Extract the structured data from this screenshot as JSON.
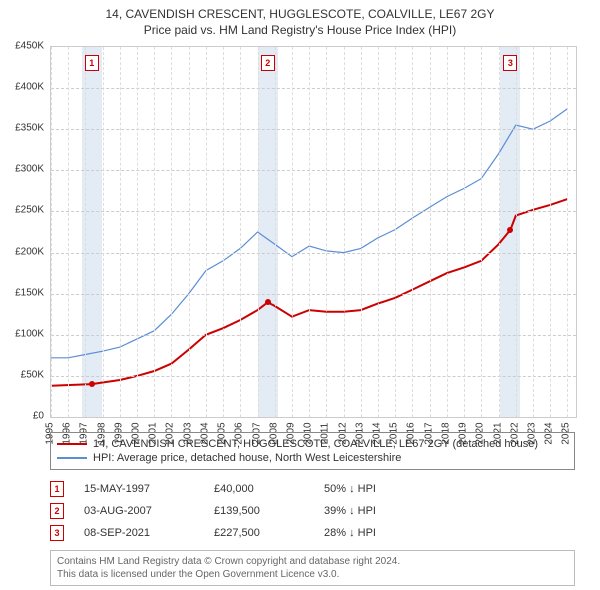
{
  "title_line1": "14, CAVENDISH CRESCENT, HUGGLESCOTE, COALVILLE, LE67 2GY",
  "title_line2": "Price paid vs. HM Land Registry's House Price Index (HPI)",
  "chart": {
    "type": "line",
    "x_years": [
      1995,
      1996,
      1997,
      1998,
      1999,
      2000,
      2001,
      2002,
      2003,
      2004,
      2005,
      2006,
      2007,
      2008,
      2009,
      2010,
      2011,
      2012,
      2013,
      2014,
      2015,
      2016,
      2017,
      2018,
      2019,
      2020,
      2021,
      2022,
      2023,
      2024,
      2025
    ],
    "xlim": [
      1995,
      2025.5
    ],
    "ylim": [
      0,
      450000
    ],
    "ytick_step": 50000,
    "y_tick_labels": [
      "£0",
      "£50K",
      "£100K",
      "£150K",
      "£200K",
      "£250K",
      "£300K",
      "£350K",
      "£400K",
      "£450K"
    ],
    "grid_color": "#ccc",
    "background_color": "#ffffff",
    "band_color": "rgba(200,215,235,0.5)",
    "series": [
      {
        "name": "property",
        "color": "#cc0000",
        "width": 2,
        "points": [
          [
            1995,
            38000
          ],
          [
            1997.37,
            40000
          ],
          [
            1998,
            42000
          ],
          [
            1999,
            45000
          ],
          [
            2000,
            50000
          ],
          [
            2001,
            56000
          ],
          [
            2002,
            65000
          ],
          [
            2003,
            82000
          ],
          [
            2004,
            100000
          ],
          [
            2005,
            108000
          ],
          [
            2006,
            118000
          ],
          [
            2007,
            130000
          ],
          [
            2007.59,
            139500
          ],
          [
            2008,
            135000
          ],
          [
            2009,
            122000
          ],
          [
            2010,
            130000
          ],
          [
            2011,
            128000
          ],
          [
            2012,
            128000
          ],
          [
            2013,
            130000
          ],
          [
            2014,
            138000
          ],
          [
            2015,
            145000
          ],
          [
            2016,
            155000
          ],
          [
            2017,
            165000
          ],
          [
            2018,
            175000
          ],
          [
            2019,
            182000
          ],
          [
            2020,
            190000
          ],
          [
            2021,
            210000
          ],
          [
            2021.69,
            227500
          ],
          [
            2022,
            245000
          ],
          [
            2023,
            252000
          ],
          [
            2024,
            258000
          ],
          [
            2025,
            265000
          ]
        ]
      },
      {
        "name": "hpi",
        "color": "#5b8dd6",
        "width": 1.2,
        "points": [
          [
            1995,
            72000
          ],
          [
            1996,
            72000
          ],
          [
            1997,
            76000
          ],
          [
            1998,
            80000
          ],
          [
            1999,
            85000
          ],
          [
            2000,
            95000
          ],
          [
            2001,
            105000
          ],
          [
            2002,
            125000
          ],
          [
            2003,
            150000
          ],
          [
            2004,
            178000
          ],
          [
            2005,
            190000
          ],
          [
            2006,
            205000
          ],
          [
            2007,
            225000
          ],
          [
            2008,
            210000
          ],
          [
            2009,
            195000
          ],
          [
            2010,
            208000
          ],
          [
            2011,
            202000
          ],
          [
            2012,
            200000
          ],
          [
            2013,
            205000
          ],
          [
            2014,
            218000
          ],
          [
            2015,
            228000
          ],
          [
            2016,
            242000
          ],
          [
            2017,
            255000
          ],
          [
            2018,
            268000
          ],
          [
            2019,
            278000
          ],
          [
            2020,
            290000
          ],
          [
            2021,
            320000
          ],
          [
            2022,
            355000
          ],
          [
            2023,
            350000
          ],
          [
            2024,
            360000
          ],
          [
            2025,
            375000
          ]
        ]
      }
    ],
    "transaction_markers": [
      {
        "n": "1",
        "year": 1997.37,
        "price": 40000
      },
      {
        "n": "2",
        "year": 2007.59,
        "price": 139500
      },
      {
        "n": "3",
        "year": 2021.69,
        "price": 227500
      }
    ]
  },
  "legend": {
    "items": [
      {
        "color": "#cc0000",
        "label": "14, CAVENDISH CRESCENT, HUGGLESCOTE, COALVILLE, LE67 2GY (detached house)"
      },
      {
        "color": "#5b8dd6",
        "label": "HPI: Average price, detached house, North West Leicestershire"
      }
    ]
  },
  "transactions": [
    {
      "n": "1",
      "date": "15-MAY-1997",
      "price": "£40,000",
      "delta": "50% ↓ HPI"
    },
    {
      "n": "2",
      "date": "03-AUG-2007",
      "price": "£139,500",
      "delta": "39% ↓ HPI"
    },
    {
      "n": "3",
      "date": "08-SEP-2021",
      "price": "£227,500",
      "delta": "28% ↓ HPI"
    }
  ],
  "footer_line1": "Contains HM Land Registry data © Crown copyright and database right 2024.",
  "footer_line2": "This data is licensed under the Open Government Licence v3.0."
}
